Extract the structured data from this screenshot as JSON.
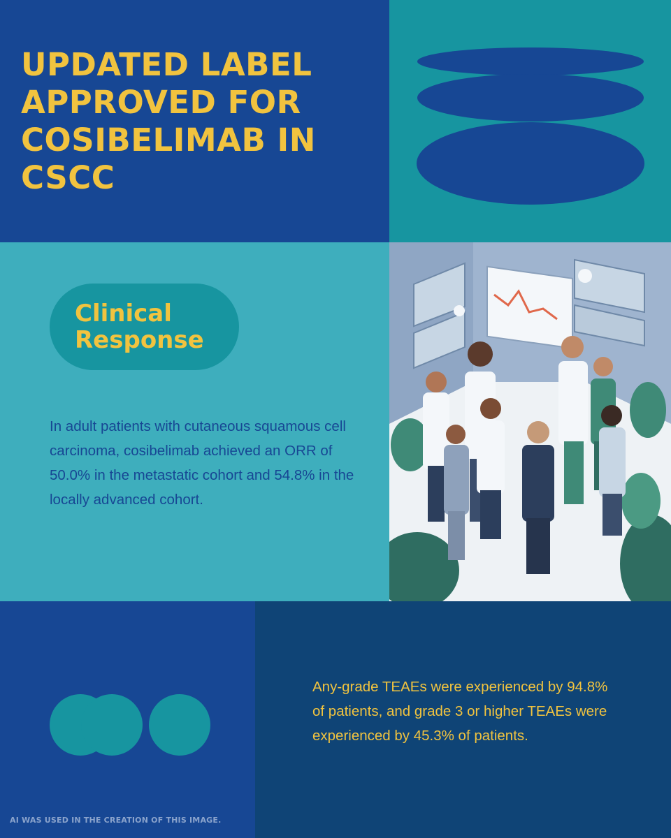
{
  "header": {
    "title": "UPDATED LABEL APPROVED FOR COSIBELIMAB IN CSCC"
  },
  "clinical": {
    "pill_label": "Clinical Response",
    "body": "In adult patients with cutaneous squamous cell carcinoma, cosibelimab achieved an ORR of 50.0% in the metastatic cohort and 54.8% in the locally advanced cohort."
  },
  "safety": {
    "body": "Any-grade TEAEs were experienced by 94.8% of patients, and grade 3 or higher TEAEs were experienced by 45.3% of patients."
  },
  "footer": {
    "disclaimer": "AI WAS USED IN THE CREATION OF THIS IMAGE."
  },
  "colors": {
    "royal_blue": "#174794",
    "teal": "#1795a0",
    "light_teal": "#3eaebd",
    "navy": "#0f4476",
    "yellow": "#f1c33f"
  },
  "icons": {
    "illustration": "medical-team-illustration"
  }
}
